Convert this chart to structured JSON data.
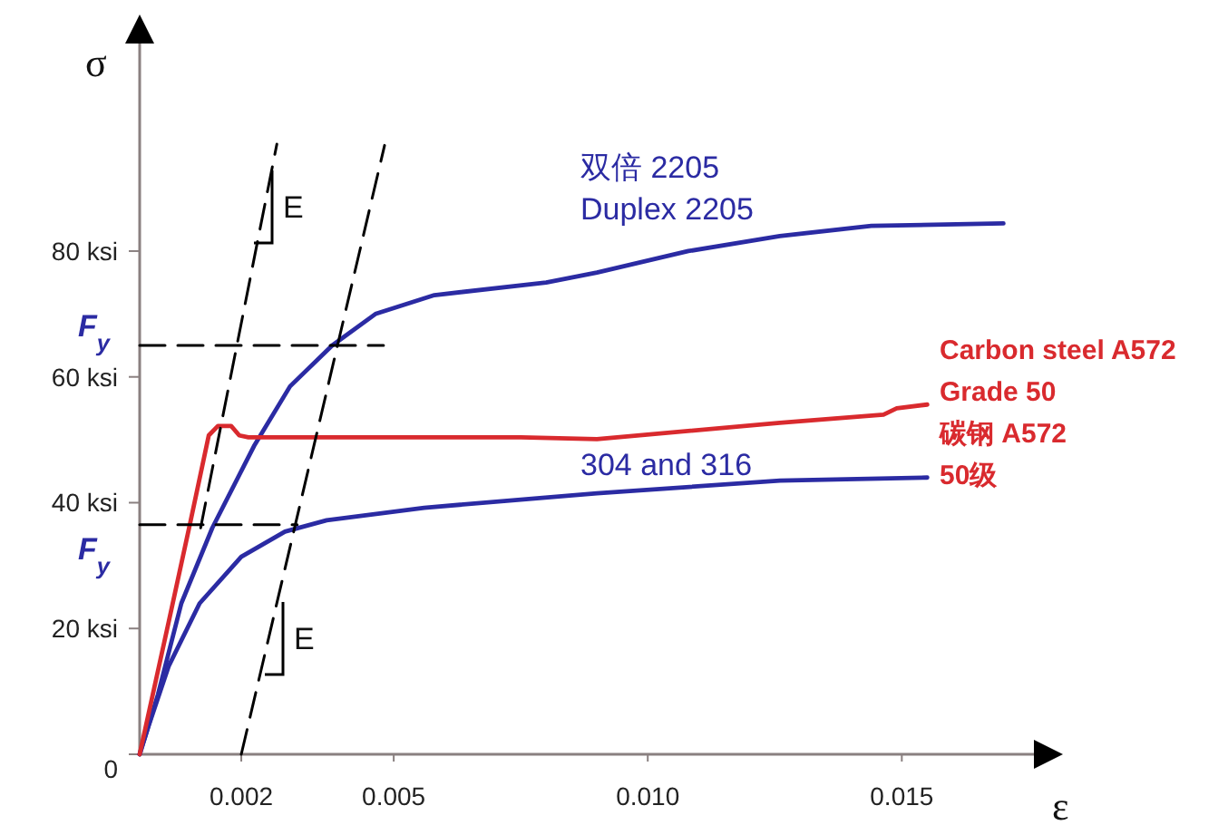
{
  "chart_data": {
    "type": "line",
    "xlabel": "ε",
    "ylabel": "σ",
    "xlim": [
      0,
      0.0176
    ],
    "ylim": [
      0,
      113
    ],
    "xticks": [
      0.002,
      0.005,
      {
        "value": 0.01,
        "label": "0.010"
      },
      0.015
    ],
    "yticks": [
      0,
      {
        "value": 20,
        "label": "20 ksi"
      },
      {
        "value": 40,
        "label": "40 ksi"
      },
      {
        "value": 60,
        "label": "60 ksi"
      },
      {
        "value": 80,
        "label": "80 ksi"
      }
    ],
    "grid": false,
    "marker": "none",
    "series": [
      {
        "name": "双倍 2205\nDuplex 2205",
        "color": "#2b2ba3",
        "x": [
          0,
          0.00036,
          0.00082,
          0.00143,
          0.00225,
          0.00296,
          0.00379,
          0.00464,
          0.0058,
          0.008,
          0.009,
          0.0108,
          0.0126,
          0.0144,
          0.017
        ],
        "values": [
          0,
          9.5,
          24,
          36,
          49,
          58.5,
          65,
          70,
          73,
          75,
          76.6,
          80,
          82.4,
          84,
          84.4
        ]
      },
      {
        "name": "304 and 316",
        "color": "#2b2ba3",
        "x": [
          0,
          0.00018,
          0.00057,
          0.00118,
          0.002,
          0.00286,
          0.00368,
          0.0056,
          0.009,
          0.0126,
          0.0155
        ],
        "values": [
          0,
          4.6,
          14,
          24,
          31.4,
          35.4,
          37.2,
          39.2,
          41.5,
          43.5,
          44
        ]
      },
      {
        "name": "Carbon steel A572\nGrade 50\n碳钢  A572\n50级",
        "color": "#d92a2e",
        "x": [
          0,
          0.00057,
          0.001,
          0.00136,
          0.00154,
          0.0018,
          0.00196,
          0.00214,
          0.0075,
          0.009,
          0.0126,
          0.01464,
          0.0149,
          0.0155
        ],
        "values": [
          0,
          21,
          37,
          50.7,
          52.2,
          52.2,
          50.7,
          50.4,
          50.4,
          50.1,
          52.7,
          54,
          55,
          55.6
        ]
      },
      {
        "color": "#000000",
        "line_style": "dashed",
        "x": [
          0.0012,
          0.0027
        ],
        "values": [
          36,
          97
        ]
      },
      {
        "color": "#000000",
        "line_style": "dashed",
        "x": [
          0.002,
          0.00482
        ],
        "values": [
          0,
          96.8
        ]
      },
      {
        "color": "#000000",
        "line_style": "dashed",
        "x": [
          0,
          0.0048
        ],
        "values": [
          65,
          65
        ]
      },
      {
        "color": "#000000",
        "line_style": "dashed",
        "x": [
          0,
          0.0031
        ],
        "values": [
          36.5,
          36.5
        ]
      }
    ],
    "annotations": [
      {
        "text": "F$_{y}$",
        "x": 0,
        "y": 65
      },
      {
        "text": "F$_{y}$",
        "x": 0,
        "y": 36.5
      },
      "E",
      "E"
    ]
  }
}
